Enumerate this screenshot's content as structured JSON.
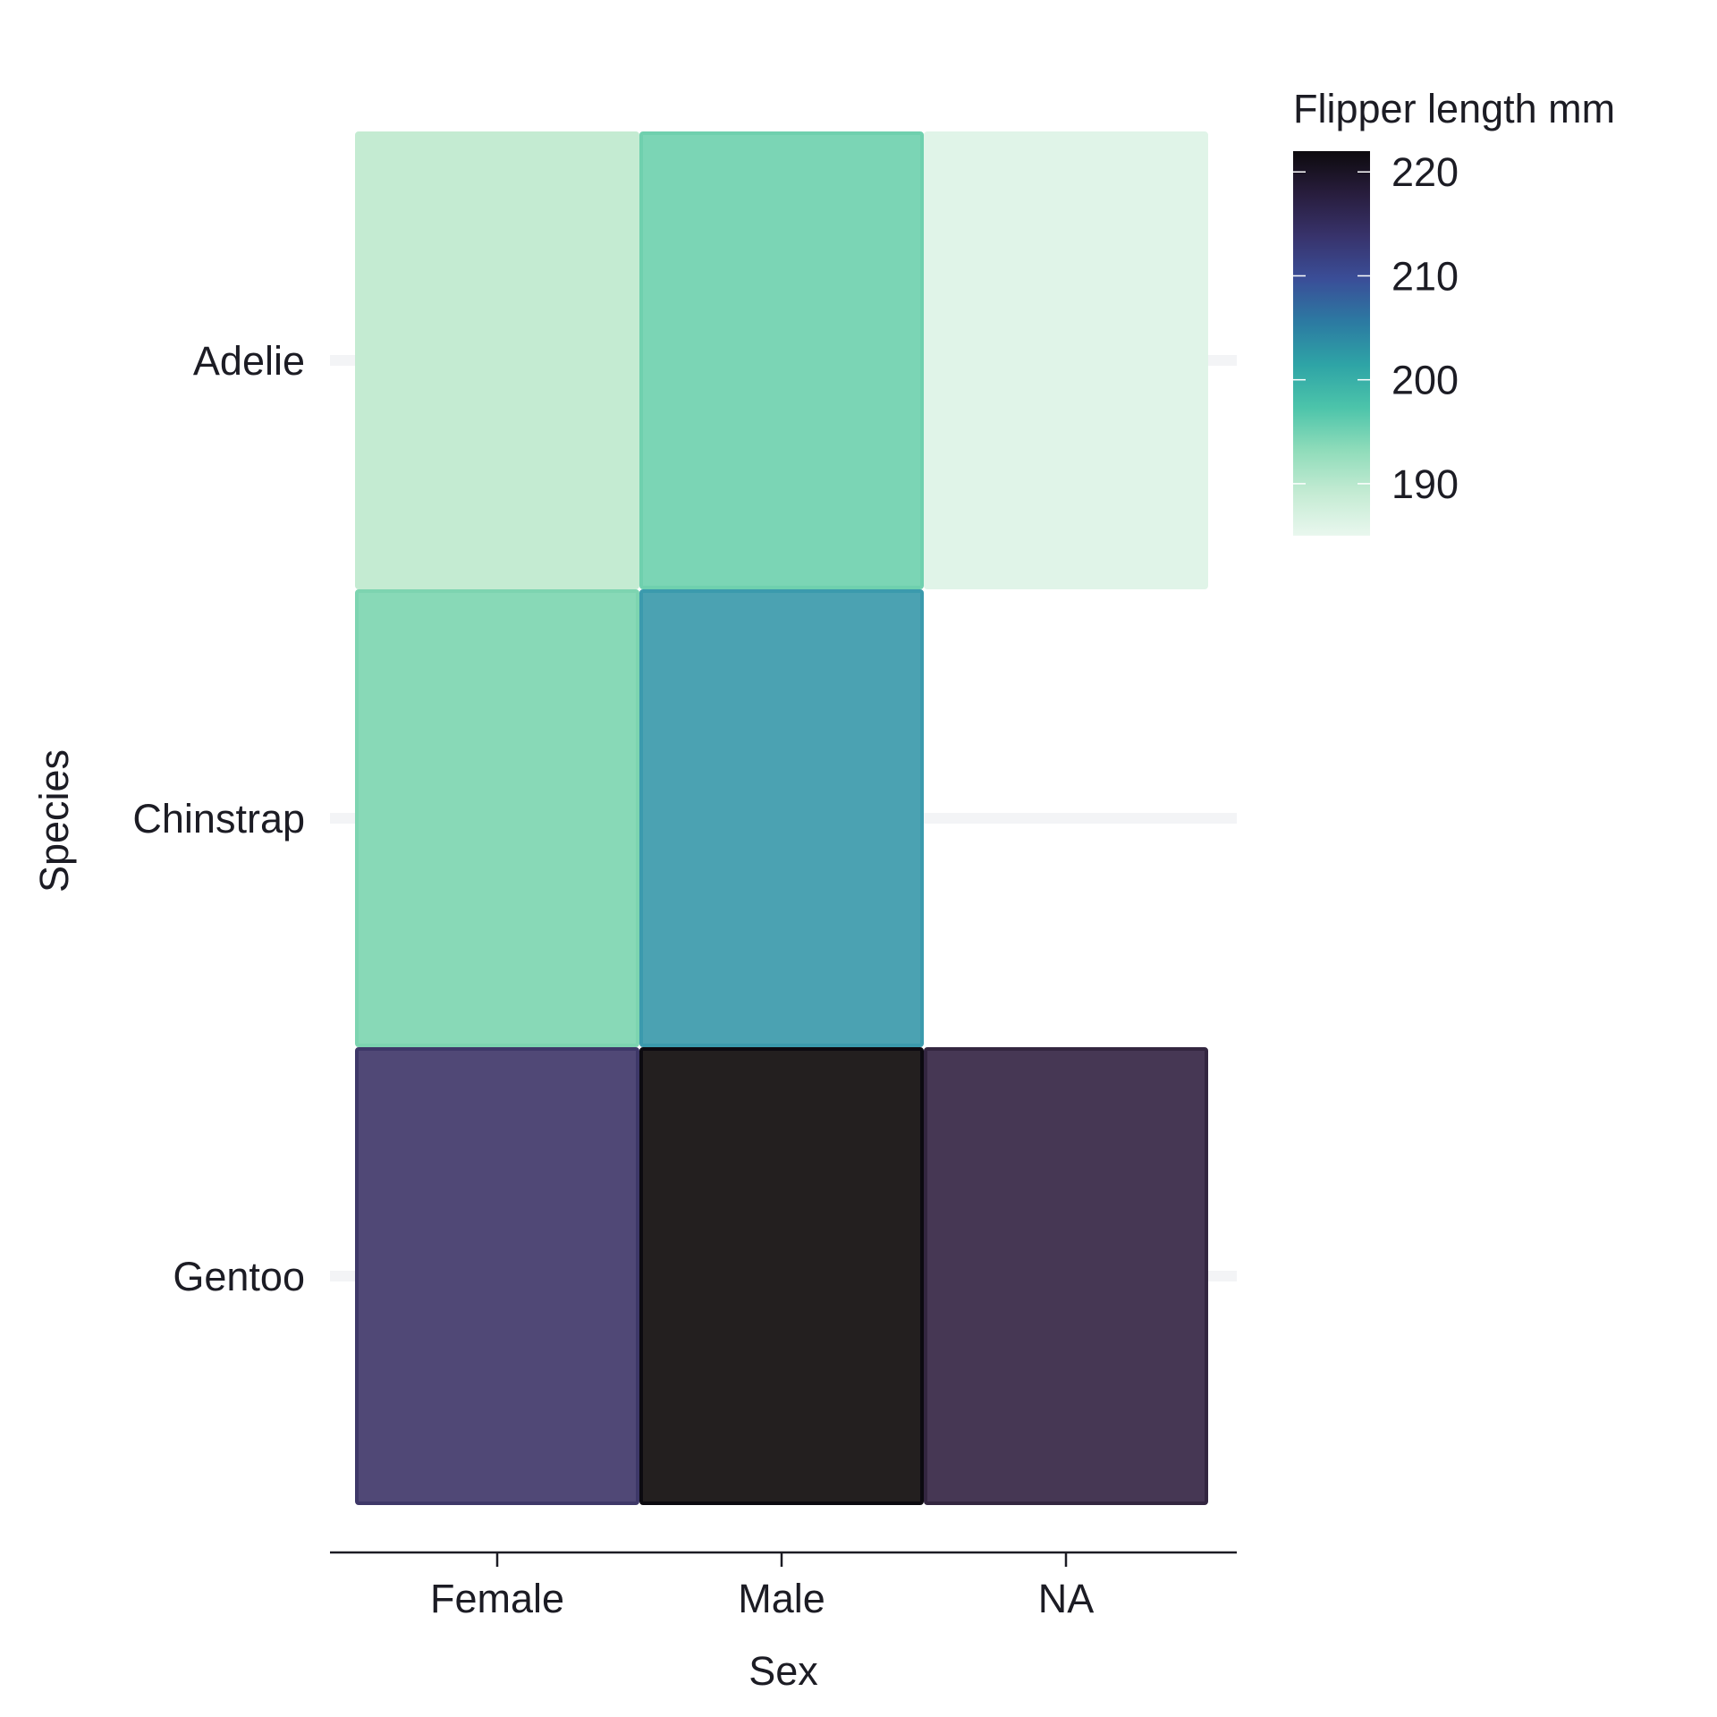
{
  "chart_data": {
    "type": "heatmap",
    "title": "",
    "xlabel": "Sex",
    "ylabel": "Species",
    "x_categories": [
      "Female",
      "Male",
      "NA"
    ],
    "y_categories": [
      "Adelie",
      "Chinstrap",
      "Gentoo"
    ],
    "cells": [
      {
        "x": "Female",
        "y": "Adelie",
        "value": 187.8,
        "color": "#c4ebd2",
        "stroke": "#c4ebd2"
      },
      {
        "x": "Male",
        "y": "Adelie",
        "value": 192.4,
        "color": "#7bd5b5",
        "stroke": "#6fd0ae"
      },
      {
        "x": "NA",
        "y": "Adelie",
        "value": 185.6,
        "color": "#e0f4e8",
        "stroke": "#e0f4e8"
      },
      {
        "x": "Female",
        "y": "Chinstrap",
        "value": 191.7,
        "color": "#88d9b7",
        "stroke": "#7dd4b0"
      },
      {
        "x": "Male",
        "y": "Chinstrap",
        "value": 199.9,
        "color": "#4ba2b2",
        "stroke": "#3b9aad"
      },
      {
        "x": "Female",
        "y": "Gentoo",
        "value": 212.7,
        "color": "#504876",
        "stroke": "#3e3868"
      },
      {
        "x": "Male",
        "y": "Gentoo",
        "value": 221.5,
        "color": "#231f1f",
        "stroke": "#0c0a10"
      },
      {
        "x": "NA",
        "y": "Gentoo",
        "value": 215.8,
        "color": "#463754",
        "stroke": "#332640"
      }
    ],
    "colorbar": {
      "title": "Flipper length mm",
      "min": 185,
      "max": 222,
      "ticks": [
        190,
        200,
        210,
        220
      ],
      "tick_labels": [
        "190",
        "200",
        "210",
        "220"
      ],
      "stops": [
        "#e9f7ee",
        "#c4ebd3",
        "#8fdcba",
        "#4cc4aa",
        "#2ea4a6",
        "#2c7aa2",
        "#3a4e98",
        "#38336c",
        "#281d3d",
        "#0d0a0e"
      ]
    },
    "legend_position": "top-right",
    "grid": "horizontal",
    "x_axis_line": true
  }
}
